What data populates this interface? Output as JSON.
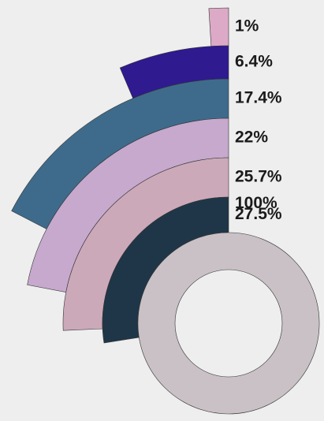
{
  "chart_data": {
    "type": "radial_bar",
    "categories": [
      "1%",
      "6.4%",
      "17.4%",
      "22%",
      "25.7%",
      "27.5%",
      "100%"
    ],
    "values": [
      1,
      6.4,
      17.4,
      22,
      25.7,
      27.5,
      100
    ],
    "value_labels": [
      "1%",
      "6.4%",
      "17.4%",
      "22%",
      "25.7%",
      "27.5%",
      "100%"
    ],
    "colors": [
      "#dcaac6",
      "#2f1a90",
      "#3e6b8b",
      "#c6a9cd",
      "#cba9b9",
      "#1f3648",
      "#c9c1c5"
    ],
    "ylim": [
      0,
      100
    ]
  }
}
